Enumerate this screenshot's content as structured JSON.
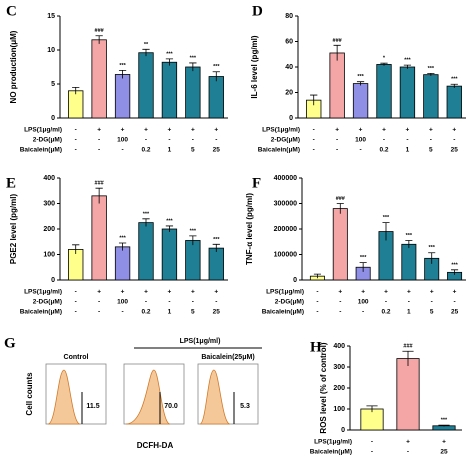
{
  "chart_data": [
    {
      "type": "bar",
      "panel": "C",
      "ylabel": "NO production(μM)",
      "ylim": [
        0,
        15
      ],
      "yticks": [
        0,
        5,
        10,
        15
      ],
      "values": [
        4,
        11.5,
        6.4,
        9.6,
        8.2,
        7.5,
        6.1
      ],
      "errors": [
        0.5,
        0.6,
        0.6,
        0.5,
        0.5,
        0.6,
        0.7
      ],
      "significance": [
        null,
        "###",
        "***",
        "**",
        "***",
        "***",
        "***"
      ],
      "colors": [
        "#ffff8c",
        "#f4a6a6",
        "#8f8fe6",
        "#1f7f95",
        "#1f7f95",
        "#1f7f95",
        "#1f7f95"
      ],
      "treatments": [
        {
          "label": "LPS(1μg/ml)",
          "values": [
            "-",
            "+",
            "+",
            "+",
            "+",
            "+",
            "+"
          ]
        },
        {
          "label": "2-DG(μM)",
          "values": [
            "-",
            "-",
            "100",
            "-",
            "-",
            "-",
            "-"
          ]
        },
        {
          "label": "Baicalein(μM)",
          "values": [
            "-",
            "-",
            "-",
            "0.2",
            "1",
            "5",
            "25"
          ]
        }
      ]
    },
    {
      "type": "bar",
      "panel": "D",
      "ylabel": "IL-6 level (pg/ml)",
      "ylim": [
        0,
        80
      ],
      "yticks": [
        0,
        20,
        40,
        60,
        80
      ],
      "values": [
        14,
        51,
        27,
        42,
        40,
        34,
        25
      ],
      "errors": [
        4,
        6,
        1.5,
        1,
        1.5,
        1,
        1.5
      ],
      "significance": [
        null,
        "###",
        "***",
        "*",
        "***",
        "***",
        "***"
      ],
      "colors": [
        "#ffff8c",
        "#f4a6a6",
        "#8f8fe6",
        "#1f7f95",
        "#1f7f95",
        "#1f7f95",
        "#1f7f95"
      ],
      "treatments": [
        {
          "label": "LPS(1μg/ml)",
          "values": [
            "-",
            "+",
            "+",
            "+",
            "+",
            "+",
            "+"
          ]
        },
        {
          "label": "2-DG(μM)",
          "values": [
            "-",
            "-",
            "100",
            "-",
            "-",
            "-",
            "-"
          ]
        },
        {
          "label": "Baicalein(μM)",
          "values": [
            "-",
            "-",
            "-",
            "0.2",
            "1",
            "5",
            "25"
          ]
        }
      ]
    },
    {
      "type": "bar",
      "panel": "E",
      "ylabel": "PGE2 level (pg/ml)",
      "ylim": [
        0,
        400
      ],
      "yticks": [
        0,
        100,
        200,
        300,
        400
      ],
      "values": [
        120,
        330,
        130,
        225,
        200,
        155,
        125
      ],
      "errors": [
        18,
        30,
        15,
        15,
        12,
        18,
        15
      ],
      "significance": [
        null,
        "###",
        "***",
        "***",
        "***",
        "***",
        "***"
      ],
      "colors": [
        "#ffff8c",
        "#f4a6a6",
        "#8f8fe6",
        "#1f7f95",
        "#1f7f95",
        "#1f7f95",
        "#1f7f95"
      ],
      "treatments": [
        {
          "label": "LPS(1μg/ml)",
          "values": [
            "-",
            "+",
            "+",
            "+",
            "+",
            "+",
            "+"
          ]
        },
        {
          "label": "2-DG(μM)",
          "values": [
            "-",
            "-",
            "100",
            "-",
            "-",
            "-",
            "-"
          ]
        },
        {
          "label": "Baicalein(μM)",
          "values": [
            "-",
            "-",
            "-",
            "0.2",
            "1",
            "5",
            "25"
          ]
        }
      ]
    },
    {
      "type": "bar",
      "panel": "F",
      "ylabel": "TNF-α level (pg/ml)",
      "ylim": [
        0,
        400000
      ],
      "yticks": [
        0,
        100000,
        200000,
        300000,
        400000
      ],
      "values": [
        15000,
        280000,
        50000,
        190000,
        140000,
        85000,
        30000
      ],
      "errors": [
        8000,
        20000,
        18000,
        35000,
        15000,
        22000,
        10000
      ],
      "significance": [
        null,
        "###",
        "***",
        "***",
        "***",
        "***",
        "***"
      ],
      "colors": [
        "#ffff8c",
        "#f4a6a6",
        "#8f8fe6",
        "#1f7f95",
        "#1f7f95",
        "#1f7f95",
        "#1f7f95"
      ],
      "treatments": [
        {
          "label": "LPS(1μg/ml)",
          "values": [
            "-",
            "+",
            "+",
            "+",
            "+",
            "+",
            "+"
          ]
        },
        {
          "label": "2-DG(μM)",
          "values": [
            "-",
            "-",
            "100",
            "-",
            "-",
            "-",
            "-"
          ]
        },
        {
          "label": "Baicalein(μM)",
          "values": [
            "-",
            "-",
            "-",
            "0.2",
            "1",
            "5",
            "25"
          ]
        }
      ]
    },
    {
      "type": "flow",
      "panel": "G",
      "ylabel": "Cell counts",
      "xlabel": "DCFH-DA",
      "plot_titles": [
        "Control",
        null,
        "Baicalein(25μM)"
      ],
      "group_label": "LPS(1μg/ml)",
      "values": [
        11.5,
        70,
        5.3
      ],
      "value_labels": [
        "11.5",
        "70.0",
        "5.3"
      ],
      "color": "#f5c89a"
    },
    {
      "type": "bar",
      "panel": "H",
      "ylabel": "ROS level (% of control)",
      "ylim": [
        0,
        400
      ],
      "yticks": [
        0,
        100,
        200,
        300,
        400
      ],
      "values": [
        100,
        340,
        20
      ],
      "errors": [
        15,
        35,
        3
      ],
      "significance": [
        null,
        "###",
        "***"
      ],
      "colors": [
        "#ffff8c",
        "#f4a6a6",
        "#1f7f95"
      ],
      "treatments": [
        {
          "label": "LPS(1μg/ml)",
          "values": [
            "-",
            "+",
            "+"
          ]
        },
        {
          "label": "Baicalein(μM)",
          "values": [
            "-",
            "-",
            "25"
          ]
        }
      ]
    }
  ]
}
